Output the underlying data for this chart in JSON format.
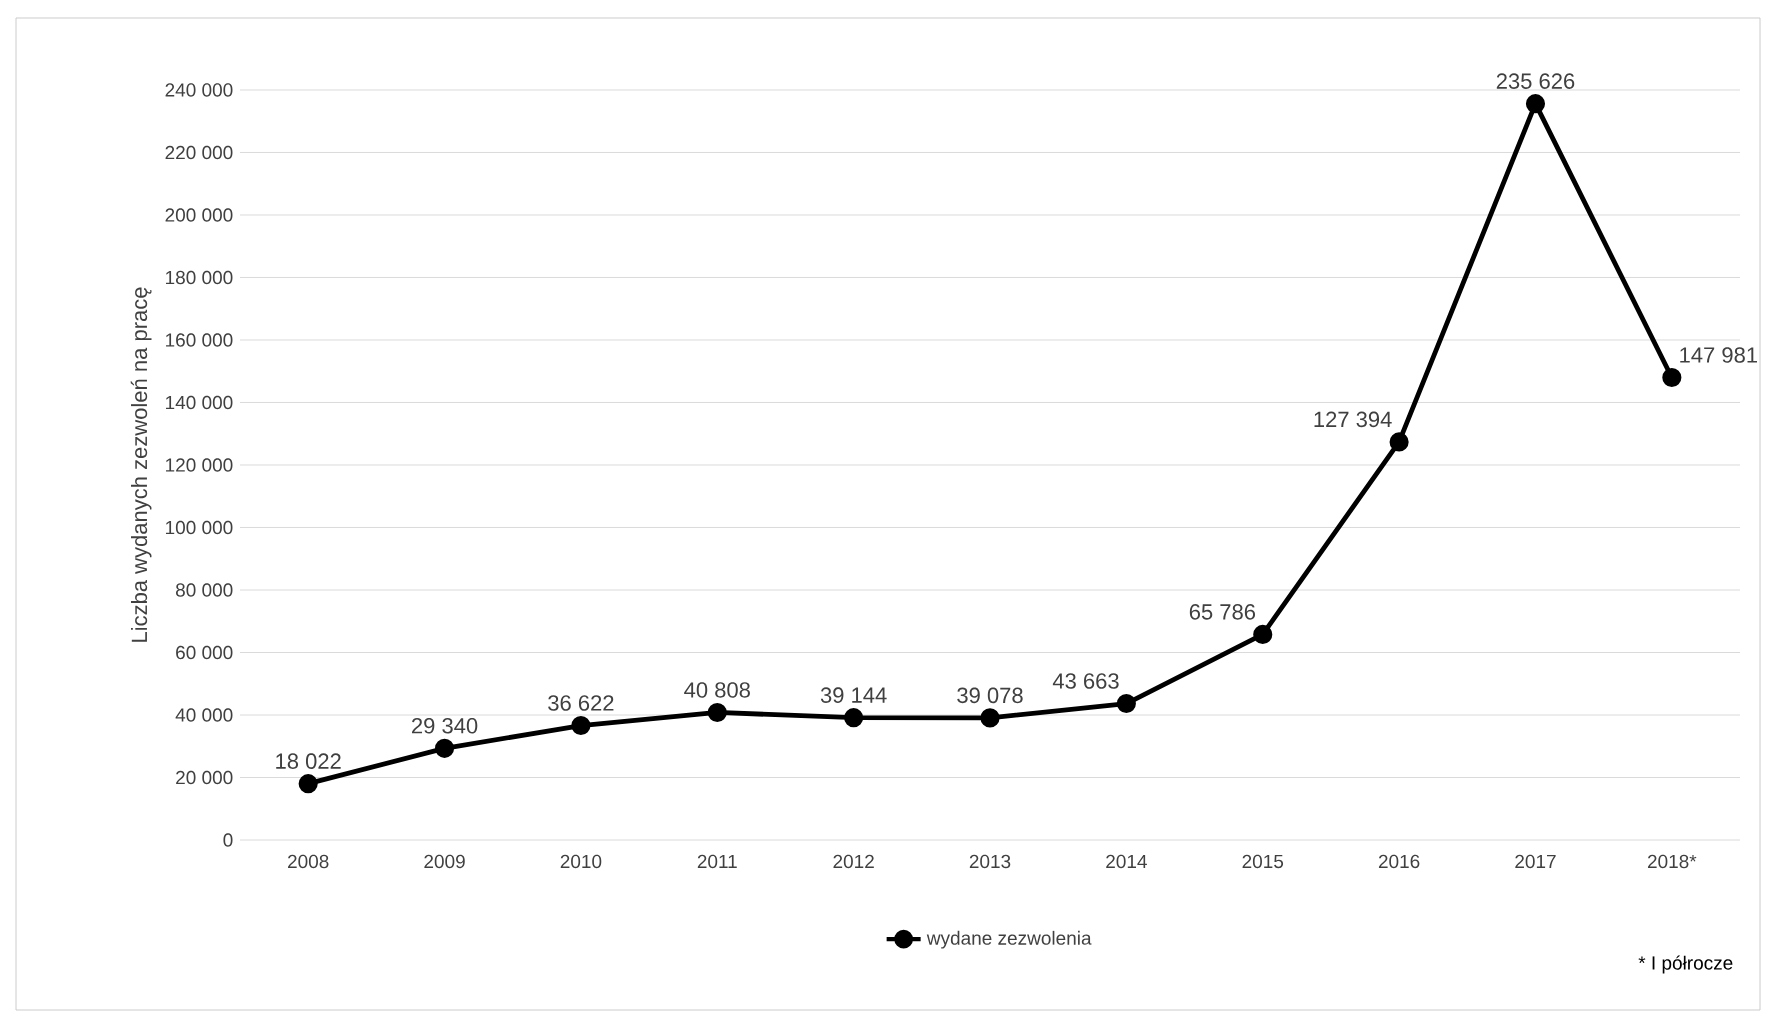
{
  "chart_data": {
    "type": "line",
    "ylabel": "Liczba wydanych zezwoleń na pracę",
    "categories": [
      "2008",
      "2009",
      "2010",
      "2011",
      "2012",
      "2013",
      "2014",
      "2015",
      "2016",
      "2017",
      "2018*"
    ],
    "series": [
      {
        "name": "wydane zezwolenia",
        "color": "#000000",
        "values": [
          18022,
          29340,
          36622,
          40808,
          39144,
          39078,
          43663,
          65786,
          127394,
          235626,
          147981
        ],
        "value_labels": [
          "18 022",
          "29 340",
          "36 622",
          "40 808",
          "39 144",
          "39 078",
          "43 663",
          "65 786",
          "127 394",
          "235 626",
          "147 981"
        ]
      }
    ],
    "ylim": [
      0,
      240000
    ],
    "yticks": [
      {
        "value": 0,
        "label": "0"
      },
      {
        "value": 20000,
        "label": "20 000"
      },
      {
        "value": 40000,
        "label": "40 000"
      },
      {
        "value": 60000,
        "label": "60 000"
      },
      {
        "value": 80000,
        "label": "80 000"
      },
      {
        "value": 100000,
        "label": "100 000"
      },
      {
        "value": 120000,
        "label": "120 000"
      },
      {
        "value": 140000,
        "label": "140 000"
      },
      {
        "value": 160000,
        "label": "160 000"
      },
      {
        "value": 180000,
        "label": "180 000"
      },
      {
        "value": 200000,
        "label": "200 000"
      },
      {
        "value": 220000,
        "label": "220 000"
      },
      {
        "value": 240000,
        "label": "240 000"
      }
    ],
    "grid": "y",
    "legend": "bottom",
    "marker": "circle",
    "line_style": "solid",
    "annotations": [
      "* I półrocze"
    ]
  }
}
